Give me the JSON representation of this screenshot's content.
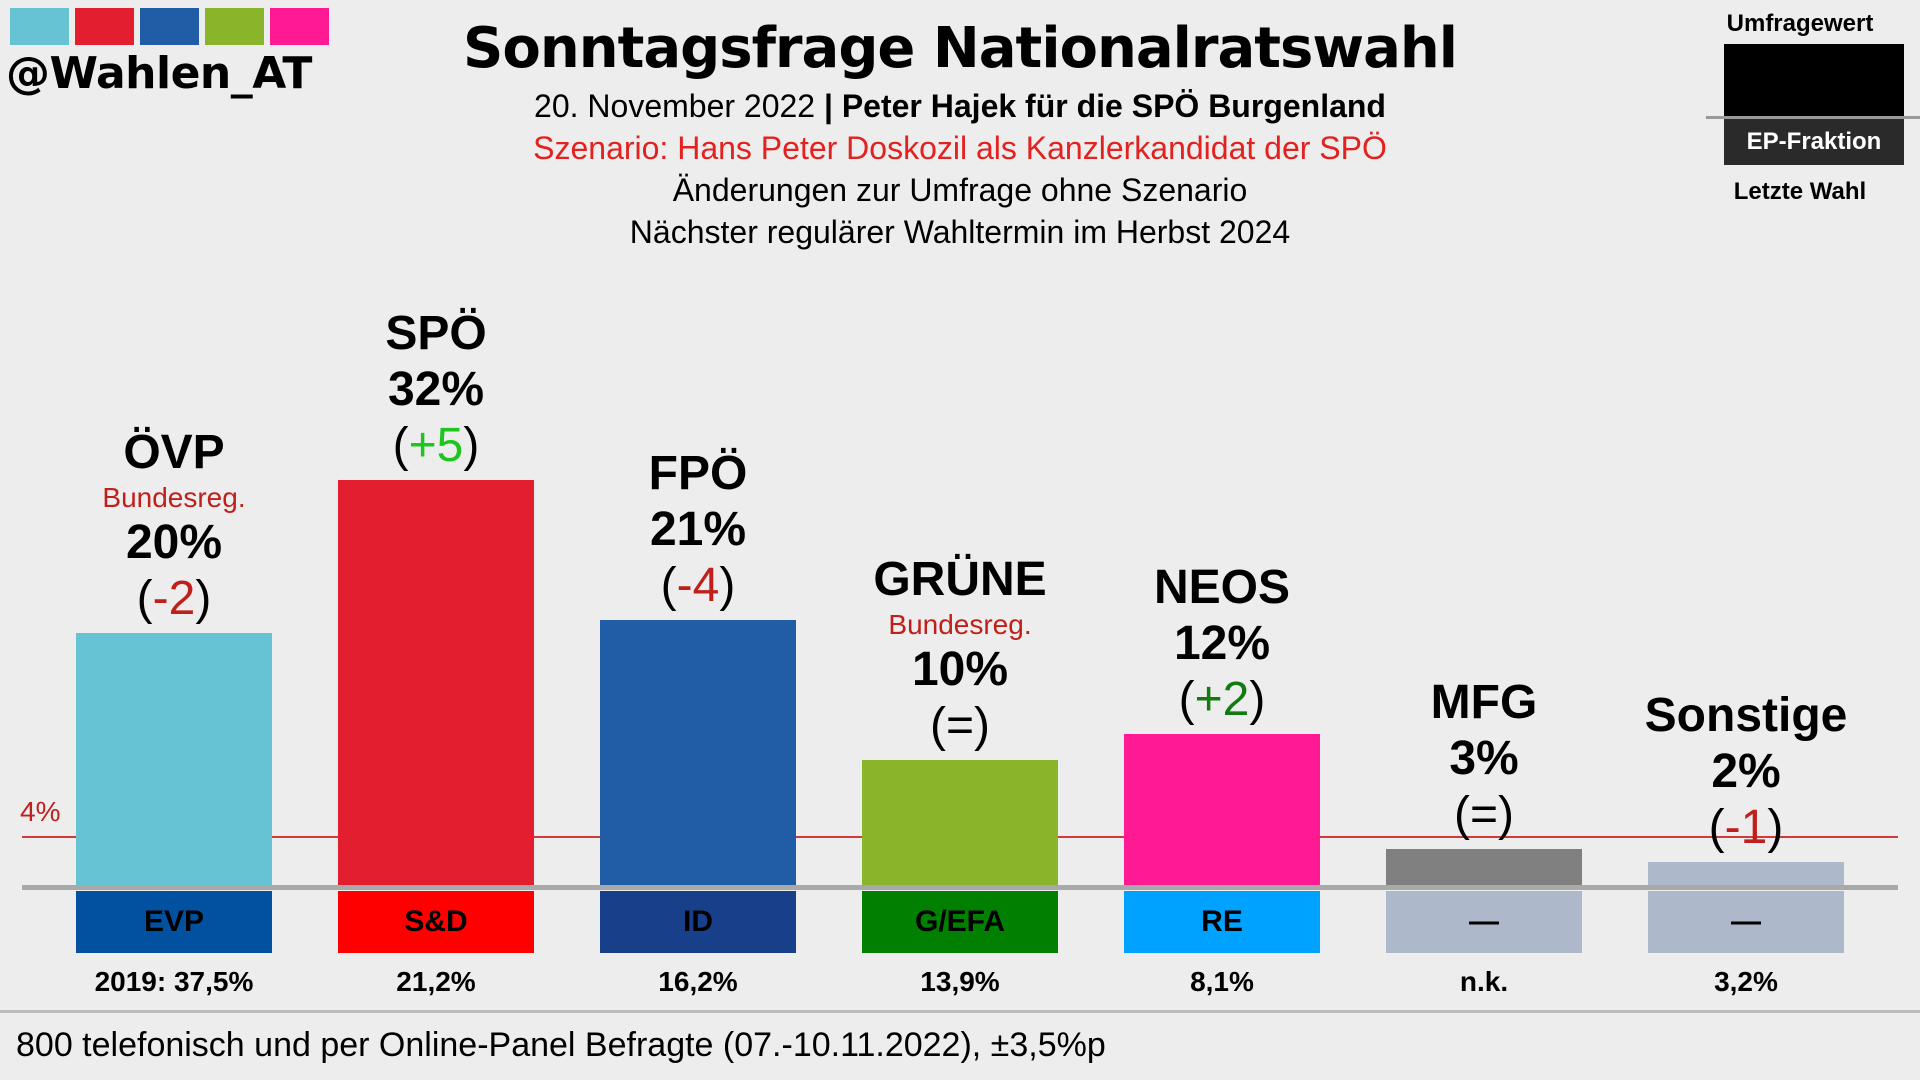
{
  "brand": {
    "handle": "@Wahlen_AT",
    "swatch_colors": [
      "#66c3d3",
      "#e31f2f",
      "#215ca6",
      "#8ab52a",
      "#ff1a94"
    ]
  },
  "header": {
    "title": "Sonntagsfrage Nationalratswahl",
    "date": "20. November 2022",
    "separator": "|",
    "institute": "Peter Hajek für die SPÖ Burgenland",
    "scenario": "Szenario: Hans Peter Doskozil als Kanzlerkandidat der SPÖ",
    "note_changes": "Änderungen zur Umfrage ohne Szenario",
    "note_next": "Nächster regulärer Wahltermin im Herbst 2024"
  },
  "legend": {
    "poll_value": "Umfragewert",
    "ep_group": "EP-Fraktion",
    "last_election": "Letzte Wahl"
  },
  "footer": {
    "sample": "800 telefonisch und per Online-Panel Befragte (07.-10.11.2022), ±3,5%p"
  },
  "chart_data": {
    "type": "bar",
    "title": "Sonntagsfrage Nationalratswahl",
    "ylabel": "",
    "xlabel": "",
    "ylim": [
      0,
      32
    ],
    "threshold": {
      "value": 4,
      "label": "4%"
    },
    "categories": [
      "ÖVP",
      "SPÖ",
      "FPÖ",
      "GRÜNE",
      "NEOS",
      "MFG",
      "Sonstige"
    ],
    "values": [
      20,
      32,
      21,
      10,
      12,
      3,
      2
    ],
    "value_labels": [
      "20%",
      "32%",
      "21%",
      "10%",
      "12%",
      "3%",
      "2%"
    ],
    "changes": [
      {
        "text": "-2",
        "dir": "down"
      },
      {
        "text": "+5",
        "dir": "up-strong"
      },
      {
        "text": "-4",
        "dir": "down"
      },
      {
        "text": "=",
        "dir": "same"
      },
      {
        "text": "+2",
        "dir": "up"
      },
      {
        "text": "=",
        "dir": "same"
      },
      {
        "text": "-1",
        "dir": "down"
      }
    ],
    "government_tag": [
      "Bundesreg.",
      "",
      "",
      "Bundesreg.",
      "",
      "",
      ""
    ],
    "bar_colors": [
      "#66c3d3",
      "#e31f2f",
      "#215ca6",
      "#8ab52a",
      "#ff1a94",
      "#808080",
      "#adb8cb"
    ],
    "ep_groups": [
      "EVP",
      "S&D",
      "ID",
      "G/EFA",
      "RE",
      "—",
      "—"
    ],
    "ep_colors": [
      "#0251a0",
      "#ff0000",
      "#183f89",
      "#007f00",
      "#00a2ff",
      "#adb8cb",
      "#adb8cb"
    ],
    "last_election": [
      "2019: 37,5%",
      "21,2%",
      "16,2%",
      "13,9%",
      "8,1%",
      "n.k.",
      "3,2%"
    ],
    "change_colors": {
      "down": "#c0201c",
      "up-strong": "#1ec51e",
      "up": "#117a11",
      "same": "#000000"
    }
  }
}
